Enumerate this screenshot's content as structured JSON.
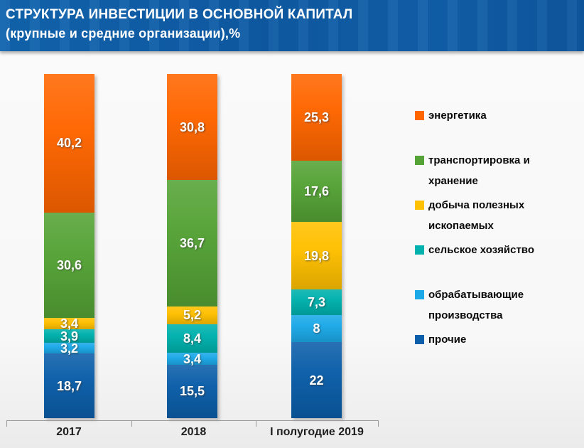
{
  "header": {
    "title_line1": "СТРУКТУРА ИНВЕСТИЦИИ В ОСНОВНОЙ КАПИТАЛ",
    "title_line2": "(крупные и средние организации),%"
  },
  "chart_data": {
    "type": "bar",
    "variant": "stacked-column",
    "title": "СТРУКТУРА ИНВЕСТИЦИИ В ОСНОВНОЙ КАПИТАЛ (крупные и средние организации),%",
    "unit": "%",
    "categories": [
      "2017",
      "2018",
      "I полугодие 2019"
    ],
    "ylim": [
      0,
      100
    ],
    "grid": false,
    "legend_position": "right",
    "stack_order": "top-to-bottom",
    "series": [
      {
        "name": "энергетика",
        "color": "#FF6600",
        "values": [
          40.2,
          30.8,
          25.3
        ],
        "labels": [
          "40,2",
          "30,8",
          "25,3"
        ]
      },
      {
        "name": "транспортировка и хранение",
        "color": "#55A336",
        "values": [
          30.6,
          36.7,
          17.6
        ],
        "labels": [
          "30,6",
          "36,7",
          "17,6"
        ]
      },
      {
        "name": "добыча полезных ископаемых",
        "color": "#FFC000",
        "values": [
          3.4,
          5.2,
          19.8
        ],
        "labels": [
          "3,4",
          "5,2",
          "19,8"
        ]
      },
      {
        "name": "сельское хозяйство",
        "color": "#00B1AD",
        "values": [
          3.9,
          8.4,
          7.3
        ],
        "labels": [
          "3,9",
          "8,4",
          "7,3"
        ]
      },
      {
        "name": "обрабатывающие производства",
        "color": "#1CA9E8",
        "values": [
          3.2,
          3.4,
          8.0
        ],
        "labels": [
          "3,2",
          "3,4",
          "8"
        ]
      },
      {
        "name": "прочие",
        "color": "#0B5EA9",
        "values": [
          18.7,
          15.5,
          22.0
        ],
        "labels": [
          "18,7",
          "15,5",
          "22"
        ]
      }
    ]
  }
}
